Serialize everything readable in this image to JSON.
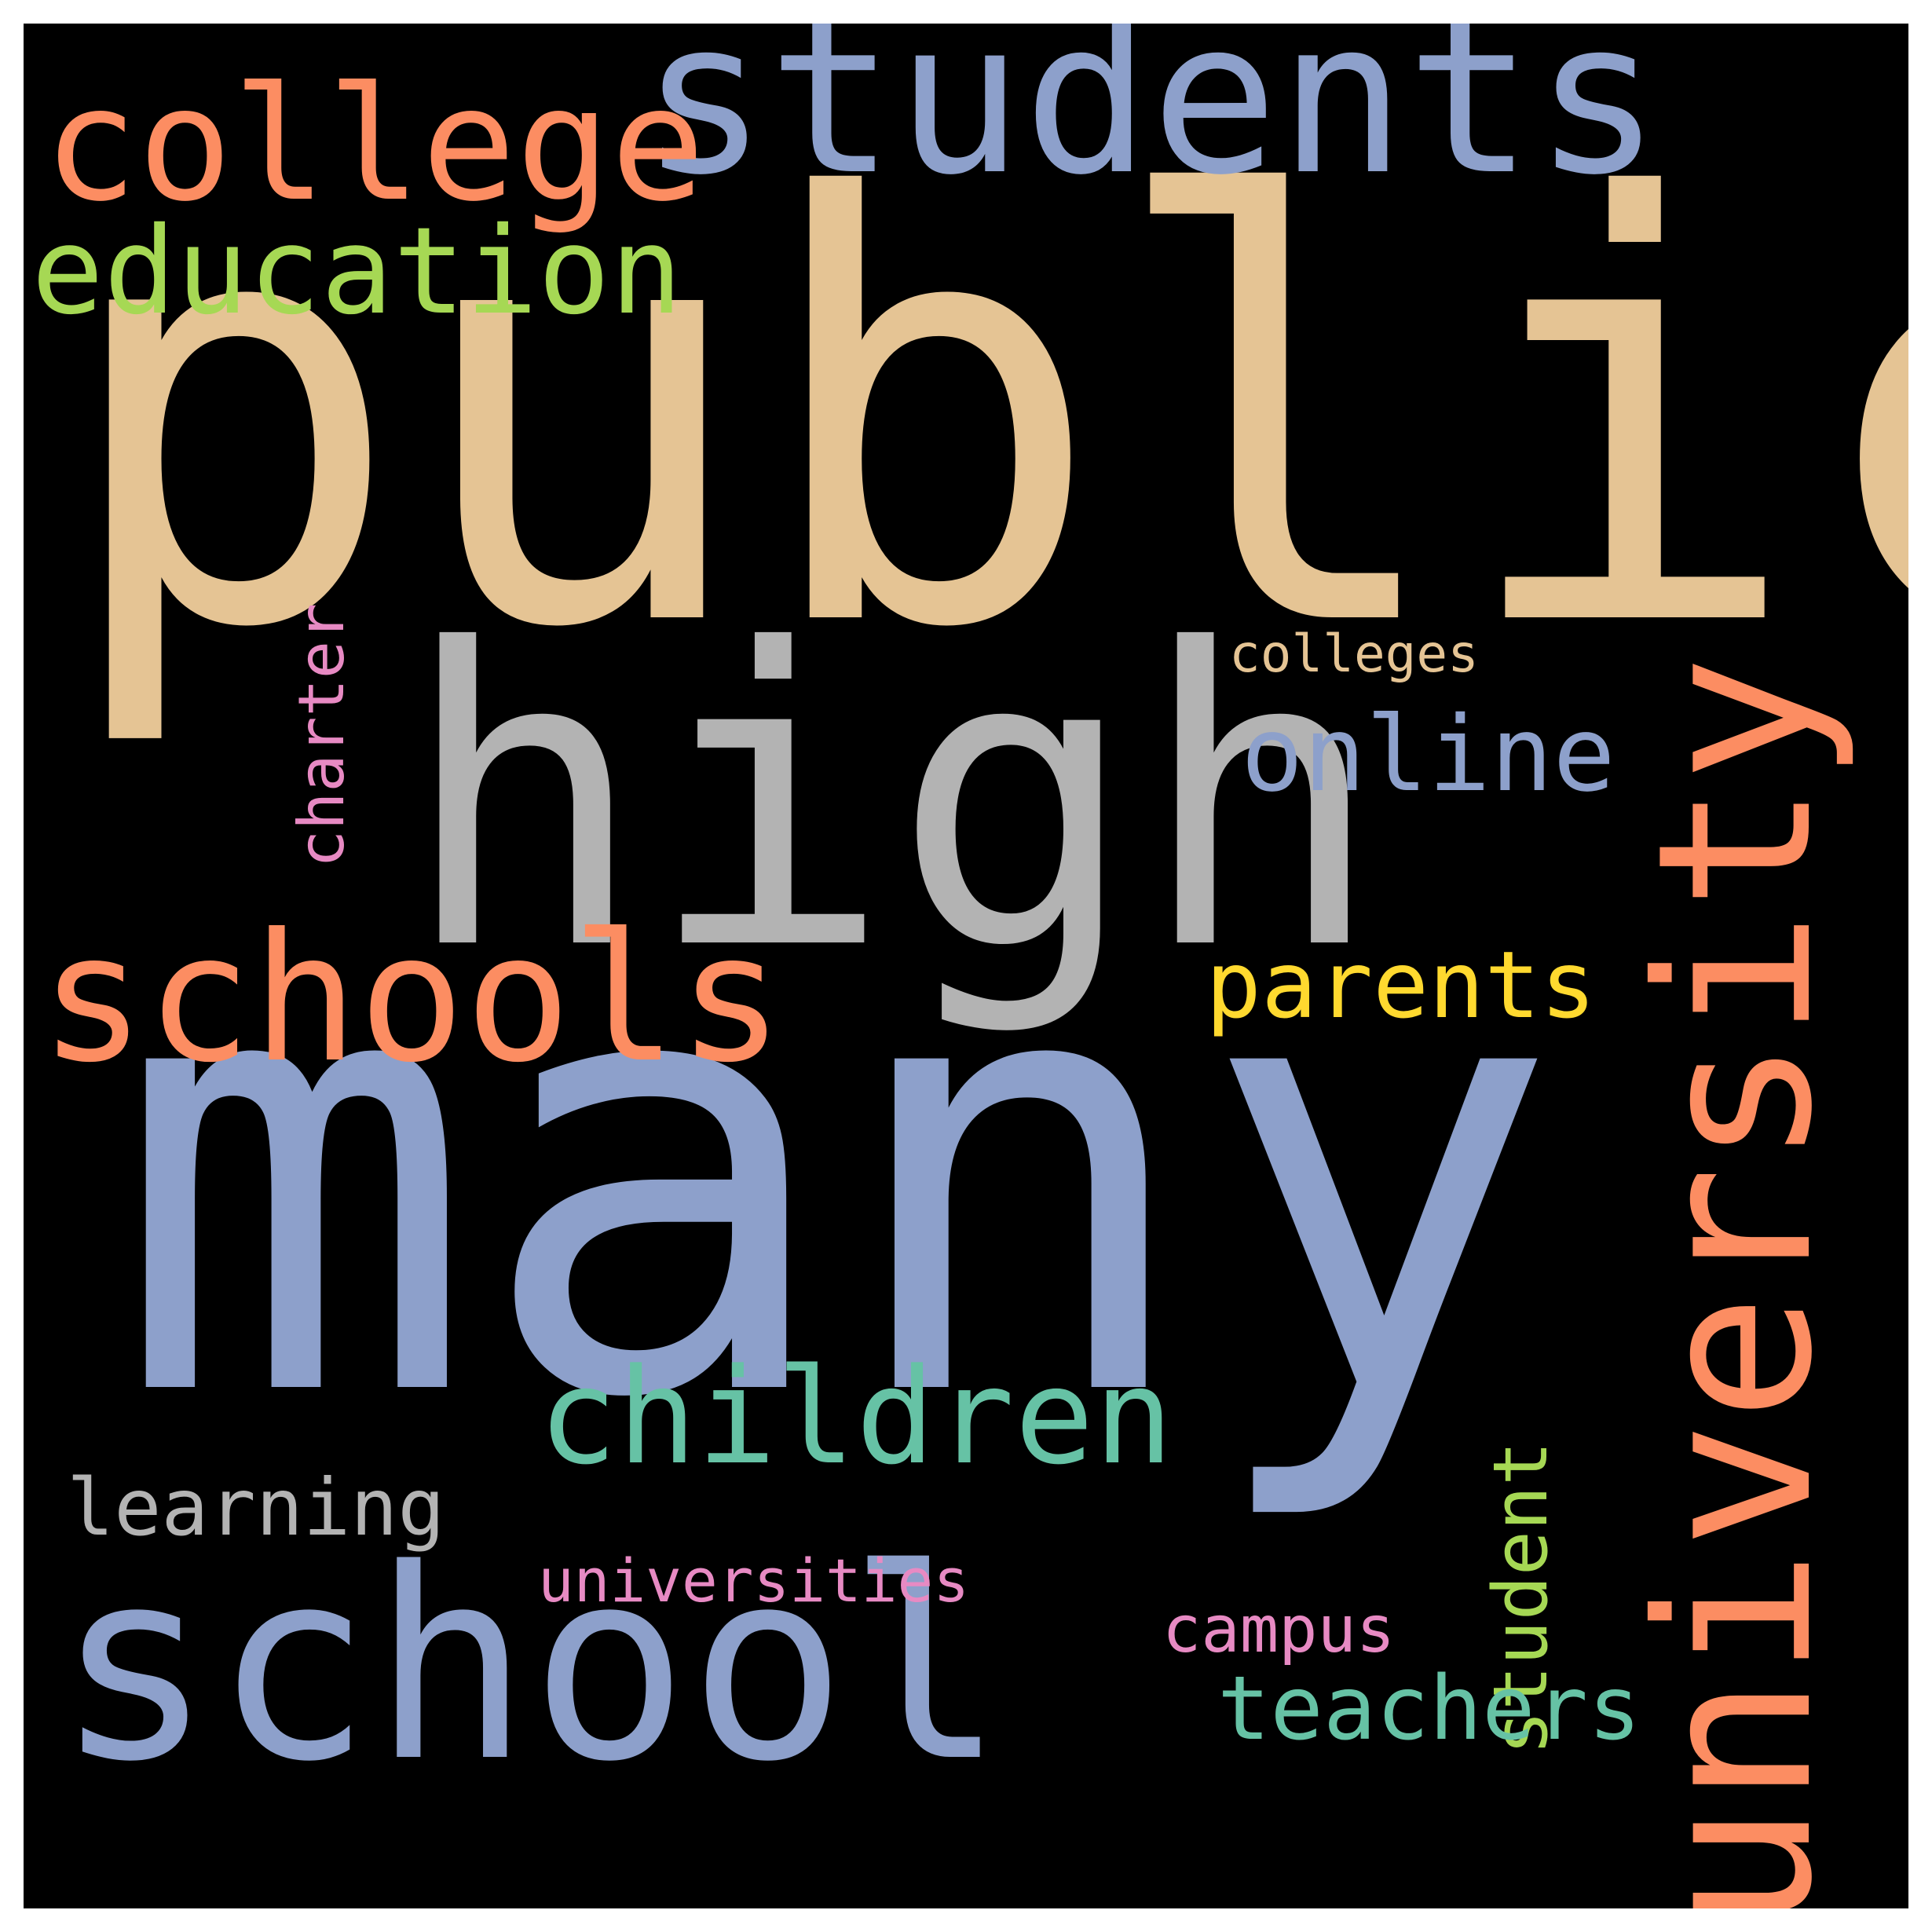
{
  "background": "#000000",
  "words": [
    {
      "text": "public",
      "color": "#e5c494",
      "orientation": "horizontal"
    },
    {
      "text": "many",
      "color": "#8da0cb",
      "orientation": "horizontal"
    },
    {
      "text": "high",
      "color": "#b3b3b3",
      "orientation": "horizontal"
    },
    {
      "text": "school",
      "color": "#8da0cb",
      "orientation": "horizontal"
    },
    {
      "text": "students",
      "color": "#8da0cb",
      "orientation": "horizontal"
    },
    {
      "text": "university",
      "color": "#fc8d62",
      "orientation": "vertical"
    },
    {
      "text": "college",
      "color": "#fc8d62",
      "orientation": "horizontal"
    },
    {
      "text": "schools",
      "color": "#fc8d62",
      "orientation": "horizontal"
    },
    {
      "text": "education",
      "color": "#a6d854",
      "orientation": "horizontal"
    },
    {
      "text": "children",
      "color": "#66c2a5",
      "orientation": "horizontal"
    },
    {
      "text": "online",
      "color": "#8da0cb",
      "orientation": "horizontal"
    },
    {
      "text": "parents",
      "color": "#ffd92f",
      "orientation": "horizontal"
    },
    {
      "text": "learning",
      "color": "#b3b3b3",
      "orientation": "horizontal"
    },
    {
      "text": "student",
      "color": "#a6d854",
      "orientation": "vertical"
    },
    {
      "text": "teachers",
      "color": "#66c2a5",
      "orientation": "horizontal"
    },
    {
      "text": "charter",
      "color": "#e78ac3",
      "orientation": "vertical"
    },
    {
      "text": "colleges",
      "color": "#e5c494",
      "orientation": "horizontal"
    },
    {
      "text": "universities",
      "color": "#e78ac3",
      "orientation": "horizontal"
    },
    {
      "text": "campus",
      "color": "#e78ac3",
      "orientation": "horizontal"
    }
  ]
}
